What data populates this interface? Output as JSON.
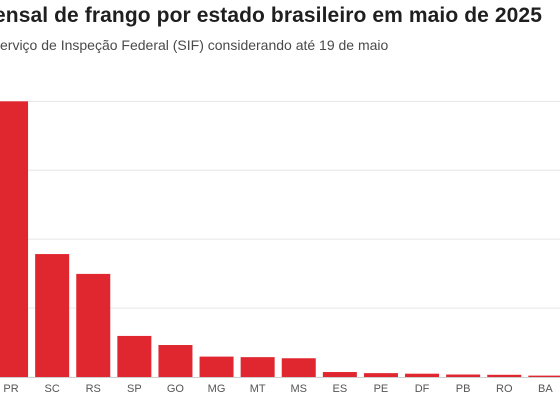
{
  "chart_data": {
    "type": "bar",
    "title": "ensal de frango por estado brasileiro em maio de 2025",
    "subtitle": "erviço de Inspeção Federal (SIF) considerando até 19 de maio",
    "categories": [
      "PR",
      "SC",
      "RS",
      "SP",
      "GO",
      "MG",
      "MT",
      "MS",
      "ES",
      "PE",
      "DF",
      "PB",
      "RO",
      "BA"
    ],
    "values": [
      100,
      44.6,
      37.4,
      14.9,
      11.6,
      7.4,
      7.2,
      6.8,
      1.8,
      1.4,
      1.2,
      0.9,
      0.8,
      0.5
    ],
    "ylim": [
      0,
      115
    ],
    "grid": true,
    "bar_color": "#e0262f",
    "grid_color": "#e6e6e6"
  }
}
